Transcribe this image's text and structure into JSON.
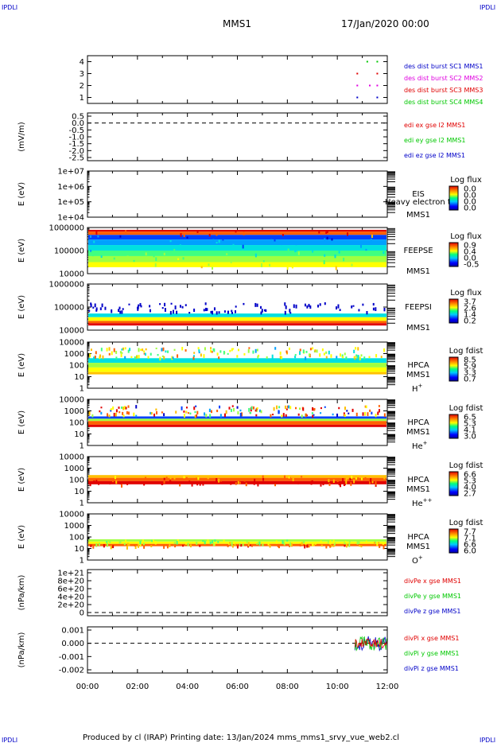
{
  "header": {
    "spacecraft": "MMS1",
    "date": "17/Jan/2020 00:00",
    "corner_mark": "IPDLI"
  },
  "footer": {
    "text": "Produced by cl (IRAP)   Printing date: 13/Jan/2024   mms_mms1_srvy_vue_web2.cl"
  },
  "colors": {
    "blue": "#0000c8",
    "magenta": "#e000e0",
    "red": "#e00000",
    "green": "#00c800"
  },
  "x_axis": {
    "ticks": [
      "00:00",
      "02:00",
      "04:00",
      "06:00",
      "08:00",
      "10:00",
      "12:00"
    ],
    "range_hours": [
      0,
      12
    ]
  },
  "chart_data": [
    {
      "type": "scatter",
      "ylabel": "",
      "yticks": [
        "4",
        "3",
        "2",
        "1"
      ],
      "ylim": [
        0.5,
        4.5
      ],
      "series": [
        {
          "name": "des dist burst SC1 MMS1",
          "color": "#0000c8",
          "x": [
            10.8,
            11.6
          ],
          "y": [
            1,
            1
          ]
        },
        {
          "name": "des dist burst SC2 MMS2",
          "color": "#e000e0",
          "x": [
            10.8,
            11.3,
            11.6
          ],
          "y": [
            2,
            2,
            2
          ]
        },
        {
          "name": "des dist burst SC3 MMS3",
          "color": "#e00000",
          "x": [
            10.8,
            11.6
          ],
          "y": [
            3,
            3
          ]
        },
        {
          "name": "des dist burst SC4 MMS4",
          "color": "#00c800",
          "x": [
            11.2,
            11.6
          ],
          "y": [
            4,
            4
          ]
        }
      ]
    },
    {
      "type": "line",
      "ylabel": "(mV/m)",
      "yticks": [
        "0.5",
        "0.0",
        "-0.5",
        "-1.0",
        "-1.5",
        "-2.0",
        "-2.5"
      ],
      "zero_line": true,
      "legend": [
        {
          "name": "edi ex gse l2 MMS1",
          "color": "#e00000"
        },
        {
          "name": "edi ey gse l2 MMS1",
          "color": "#00c800"
        },
        {
          "name": "edi ez gse l2 MMS1",
          "color": "#0000c8"
        }
      ]
    },
    {
      "type": "heatmap",
      "ylabel": "E (eV)",
      "yticks": [
        "1e+07",
        "1e+06",
        "1e+05",
        "1e+04"
      ],
      "instrument": "EIS",
      "sc": "MMS1",
      "overlay_text": "Heavy electron to",
      "colorbar_title": "Log flux",
      "colorbar_ticks": [
        "0.0",
        "0.0",
        "0.0",
        "0.0"
      ]
    },
    {
      "type": "heatmap",
      "ylabel": "E (eV)",
      "yticks": [
        "1000000",
        "100000",
        "10000"
      ],
      "instrument": "FEEPSE",
      "sc": "MMS1",
      "colorbar_title": "Log flux",
      "colorbar_ticks": [
        "0.9",
        "0.4",
        "0.0",
        "-0.5"
      ]
    },
    {
      "type": "heatmap",
      "ylabel": "E (eV)",
      "yticks": [
        "1000000",
        "100000",
        "10000"
      ],
      "instrument": "FEEPSI",
      "sc": "MMS1",
      "colorbar_title": "Log flux",
      "colorbar_ticks": [
        "3.7",
        "2.6",
        "1.4",
        "0.2"
      ]
    },
    {
      "type": "heatmap",
      "ylabel": "E (eV)",
      "yticks": [
        "10000",
        "1000",
        "100",
        "10",
        "1"
      ],
      "instrument": "HPCA",
      "sc": "MMS1",
      "species": "H",
      "species_sup": "+",
      "colorbar_title": "Log fdist",
      "colorbar_ticks": [
        "8.5",
        "5.9",
        "3.3",
        "0.7"
      ]
    },
    {
      "type": "heatmap",
      "ylabel": "E (eV)",
      "yticks": [
        "10000",
        "1000",
        "100",
        "10",
        "1"
      ],
      "instrument": "HPCA",
      "sc": "MMS1",
      "species": "He",
      "species_sup": "+",
      "colorbar_title": "Log fdist",
      "colorbar_ticks": [
        "6.5",
        "5.3",
        "4.1",
        "3.0"
      ]
    },
    {
      "type": "heatmap",
      "ylabel": "E (eV)",
      "yticks": [
        "10000",
        "1000",
        "100",
        "10",
        "1"
      ],
      "instrument": "HPCA",
      "sc": "MMS1",
      "species": "He",
      "species_sup": "++",
      "colorbar_title": "Log fdist",
      "colorbar_ticks": [
        "6.6",
        "5.3",
        "4.0",
        "2.7"
      ]
    },
    {
      "type": "heatmap",
      "ylabel": "E (eV)",
      "yticks": [
        "10000",
        "1000",
        "100",
        "10",
        "1"
      ],
      "instrument": "HPCA",
      "sc": "MMS1",
      "species": "O",
      "species_sup": "+",
      "colorbar_title": "Log fdist",
      "colorbar_ticks": [
        "7.7",
        "7.1",
        "6.6",
        "6.0"
      ]
    },
    {
      "type": "line",
      "ylabel": "(nPa/km)",
      "yticks": [
        "1e+21",
        "8e+20",
        "6e+20",
        "4e+20",
        "2e+20",
        "0"
      ],
      "zero_line": true,
      "legend": [
        {
          "name": "divPe x gse MMS1",
          "color": "#e00000"
        },
        {
          "name": "divPe y gse MMS1",
          "color": "#00c800"
        },
        {
          "name": "divPe z gse MMS1",
          "color": "#0000c8"
        }
      ]
    },
    {
      "type": "line",
      "ylabel": "(nPa/km)",
      "yticks": [
        "0.001",
        "0.000",
        "-0.001",
        "-0.002"
      ],
      "zero_line": true,
      "data_range_hours": [
        10.7,
        12.0
      ],
      "legend": [
        {
          "name": "divPi x gse MMS1",
          "color": "#e00000"
        },
        {
          "name": "divPi y gse MMS1",
          "color": "#00c800"
        },
        {
          "name": "divPi z gse MMS1",
          "color": "#0000c8"
        }
      ]
    }
  ]
}
